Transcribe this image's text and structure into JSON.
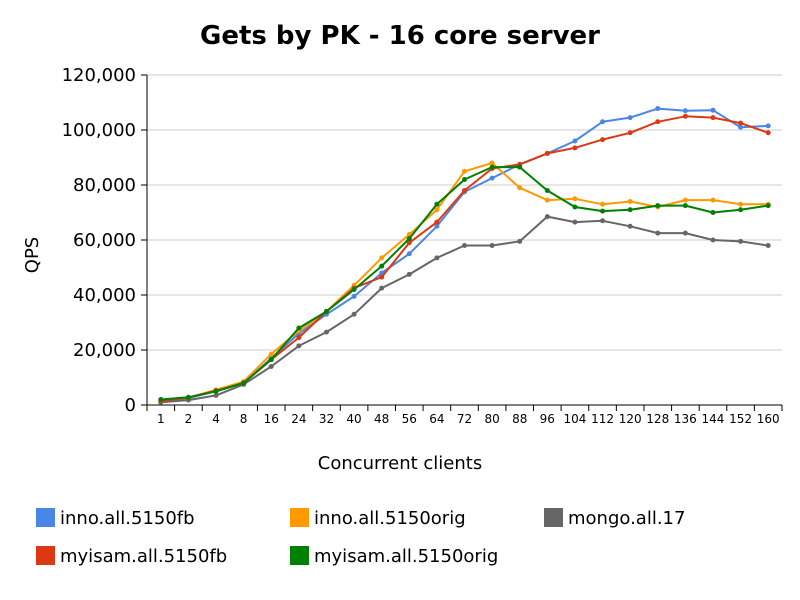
{
  "chart_data": {
    "type": "line",
    "title": "Gets by PK - 16 core server",
    "xlabel": "Concurrent clients",
    "ylabel": "QPS",
    "categories": [
      "1",
      "2",
      "4",
      "8",
      "16",
      "24",
      "32",
      "40",
      "48",
      "56",
      "64",
      "72",
      "80",
      "88",
      "96",
      "104",
      "112",
      "120",
      "128",
      "136",
      "144",
      "152",
      "160"
    ],
    "ylim": [
      0,
      120000
    ],
    "yticks": [
      0,
      20000,
      40000,
      60000,
      80000,
      100000,
      120000
    ],
    "ytick_labels": [
      "0",
      "20,000",
      "40,000",
      "60,000",
      "80,000",
      "100,000",
      "120,000"
    ],
    "grid": "horizontal",
    "legend_position": "bottom",
    "series": [
      {
        "name": "inno.all.5150fb",
        "color": "#4a86e8",
        "values": [
          1500,
          2500,
          5000,
          8000,
          17000,
          26000,
          33000,
          39500,
          48000,
          55000,
          65000,
          77500,
          82500,
          87500,
          91500,
          96000,
          103000,
          104500,
          107800,
          107000,
          107200,
          101000,
          101500
        ]
      },
      {
        "name": "inno.all.5150orig",
        "color": "#ff9900",
        "values": [
          1500,
          2700,
          5500,
          8500,
          18500,
          27000,
          34000,
          43500,
          53500,
          62000,
          71000,
          85000,
          88000,
          79000,
          74500,
          75000,
          73000,
          74000,
          72000,
          74500,
          74500,
          73000,
          73000
        ]
      },
      {
        "name": "mongo.all.17",
        "color": "#666666",
        "values": [
          1000,
          1800,
          3500,
          7500,
          14000,
          21500,
          26500,
          33000,
          42500,
          47500,
          53500,
          58000,
          58000,
          59500,
          68500,
          66500,
          67000,
          65000,
          62500,
          62500,
          60000,
          59500,
          58000
        ]
      },
      {
        "name": "myisam.all.5150fb",
        "color": "#dc3912",
        "values": [
          1500,
          2700,
          5200,
          8000,
          16500,
          24500,
          34000,
          42500,
          46500,
          59000,
          66500,
          78000,
          86000,
          87500,
          91500,
          93500,
          96500,
          99000,
          103000,
          105000,
          104500,
          102500,
          99000
        ]
      },
      {
        "name": "myisam.all.5150orig",
        "color": "#008000",
        "values": [
          2000,
          2800,
          5000,
          8000,
          16500,
          28000,
          34000,
          42000,
          50500,
          60500,
          73000,
          82000,
          86500,
          86500,
          78000,
          72000,
          70500,
          71000,
          72500,
          72500,
          70000,
          71000,
          72500
        ]
      }
    ]
  }
}
